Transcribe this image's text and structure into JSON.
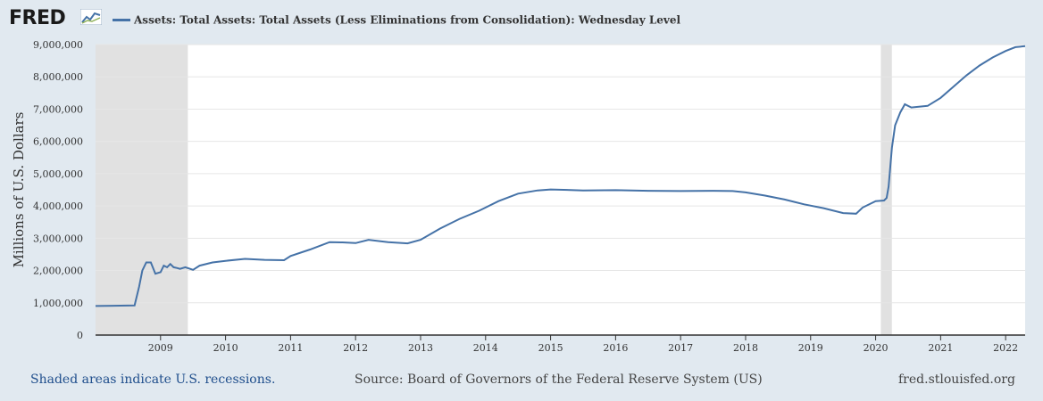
{
  "header": {
    "logo_text": "FRED",
    "series_title": "Assets: Total Assets: Total Assets (Less Eliminations from Consolidation): Wednesday Level"
  },
  "footer": {
    "recession_note": "Shaded areas indicate U.S. recessions.",
    "source": "Source: Board of Governors of the Federal Reserve System (US)",
    "site": "fred.stlouisfed.org"
  },
  "colors": {
    "line": "#4572a7",
    "recession": "#e1e1e1",
    "background": "#e1e9f0",
    "plot": "#ffffff"
  },
  "chart_data": {
    "type": "line",
    "ylabel": "Millions of U.S. Dollars",
    "ylim": [
      0,
      9000000
    ],
    "yticks": [
      0,
      1000000,
      2000000,
      3000000,
      4000000,
      5000000,
      6000000,
      7000000,
      8000000,
      9000000
    ],
    "ytick_labels": [
      "0",
      "1,000,000",
      "2,000,000",
      "3,000,000",
      "4,000,000",
      "5,000,000",
      "6,000,000",
      "7,000,000",
      "8,000,000",
      "9,000,000"
    ],
    "xlim": [
      2008.0,
      2022.3
    ],
    "xticks": [
      2009,
      2010,
      2011,
      2012,
      2013,
      2014,
      2015,
      2016,
      2017,
      2018,
      2019,
      2020,
      2021,
      2022
    ],
    "xtick_labels": [
      "2009",
      "2010",
      "2011",
      "2012",
      "2013",
      "2014",
      "2015",
      "2016",
      "2017",
      "2018",
      "2019",
      "2020",
      "2021",
      "2022"
    ],
    "recessions": [
      [
        2008.0,
        2009.42
      ],
      [
        2020.08,
        2020.25
      ]
    ],
    "grid": true,
    "series": [
      {
        "x": [
          2008.0,
          2008.6,
          2008.67,
          2008.72,
          2008.78,
          2008.85,
          2008.92,
          2009.0,
          2009.05,
          2009.1,
          2009.15,
          2009.2,
          2009.25,
          2009.3,
          2009.38,
          2009.5,
          2009.6,
          2009.8,
          2010.0,
          2010.3,
          2010.6,
          2010.9,
          2011.0,
          2011.3,
          2011.6,
          2011.8,
          2012.0,
          2012.2,
          2012.5,
          2012.8,
          2013.0,
          2013.3,
          2013.6,
          2013.9,
          2014.2,
          2014.5,
          2014.8,
          2015.0,
          2015.5,
          2016.0,
          2016.5,
          2017.0,
          2017.5,
          2017.8,
          2018.0,
          2018.3,
          2018.6,
          2018.9,
          2019.2,
          2019.5,
          2019.7,
          2019.8,
          2020.0,
          2020.13,
          2020.17,
          2020.2,
          2020.25,
          2020.3,
          2020.38,
          2020.45,
          2020.55,
          2020.8,
          2021.0,
          2021.2,
          2021.4,
          2021.6,
          2021.8,
          2022.0,
          2022.15,
          2022.3
        ],
        "values": [
          900000,
          920000,
          1500000,
          2000000,
          2250000,
          2250000,
          1900000,
          1950000,
          2150000,
          2100000,
          2200000,
          2100000,
          2080000,
          2050000,
          2100000,
          2020000,
          2150000,
          2250000,
          2300000,
          2360000,
          2330000,
          2320000,
          2450000,
          2650000,
          2880000,
          2870000,
          2850000,
          2950000,
          2880000,
          2840000,
          2950000,
          3300000,
          3600000,
          3850000,
          4150000,
          4380000,
          4480000,
          4510000,
          4480000,
          4490000,
          4470000,
          4460000,
          4470000,
          4460000,
          4420000,
          4320000,
          4200000,
          4050000,
          3930000,
          3780000,
          3760000,
          3950000,
          4150000,
          4170000,
          4250000,
          4600000,
          5800000,
          6500000,
          6900000,
          7150000,
          7050000,
          7100000,
          7350000,
          7700000,
          8050000,
          8350000,
          8600000,
          8800000,
          8920000,
          8950000
        ]
      }
    ]
  }
}
